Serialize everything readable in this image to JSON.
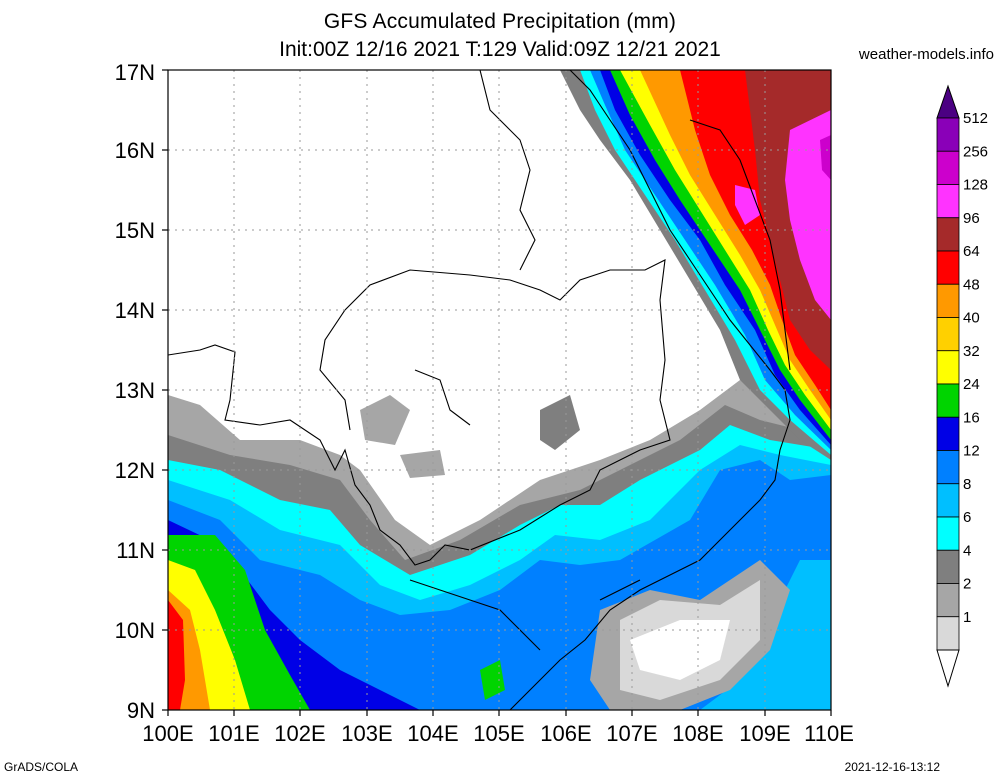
{
  "title": {
    "line1": "GFS Accumulated Precipitation (mm)",
    "line2": "Init:00Z 12/16 2021 T:129 Valid:09Z 12/21 2021"
  },
  "credit": "weather-models.info",
  "footer": {
    "left": "GrADS/COLA",
    "right": "2021-12-16-13:12"
  },
  "map": {
    "lon_range": [
      100,
      110
    ],
    "lat_range": [
      9,
      17
    ],
    "grid": true,
    "x_ticks": [
      "100E",
      "101E",
      "102E",
      "103E",
      "104E",
      "105E",
      "106E",
      "107E",
      "108E",
      "109E",
      "110E"
    ],
    "y_ticks": [
      "9N",
      "10N",
      "11N",
      "12N",
      "13N",
      "14N",
      "15N",
      "16N",
      "17N"
    ]
  },
  "legend": {
    "levels": [
      {
        "label": "1",
        "color": "#d9d9d9"
      },
      {
        "label": "2",
        "color": "#a6a6a6"
      },
      {
        "label": "4",
        "color": "#7f7f7f"
      },
      {
        "label": "6",
        "color": "#00ffff"
      },
      {
        "label": "8",
        "color": "#00bfff"
      },
      {
        "label": "12",
        "color": "#0080ff"
      },
      {
        "label": "16",
        "color": "#0000e6"
      },
      {
        "label": "24",
        "color": "#00d400"
      },
      {
        "label": "32",
        "color": "#ffff00"
      },
      {
        "label": "40",
        "color": "#ffd000"
      },
      {
        "label": "48",
        "color": "#ff9900"
      },
      {
        "label": "64",
        "color": "#ff0000"
      },
      {
        "label": "96",
        "color": "#a52a2a"
      },
      {
        "label": "128",
        "color": "#ff33ff"
      },
      {
        "label": "256",
        "color": "#cc00cc"
      },
      {
        "label": "512",
        "color": "#8a00b8"
      }
    ],
    "top_color": "#4b0082"
  }
}
